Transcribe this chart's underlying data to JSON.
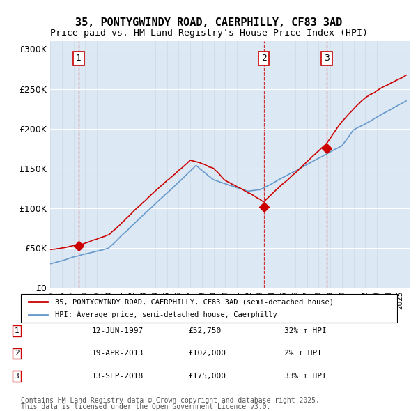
{
  "title1": "35, PONTYGWINDY ROAD, CAERPHILLY, CF83 3AD",
  "title2": "Price paid vs. HM Land Registry's House Price Index (HPI)",
  "legend_label_red": "35, PONTYGWINDY ROAD, CAERPHILLY, CF83 3AD (semi-detached house)",
  "legend_label_blue": "HPI: Average price, semi-detached house, Caerphilly",
  "footer1": "Contains HM Land Registry data © Crown copyright and database right 2025.",
  "footer2": "This data is licensed under the Open Government Licence v3.0.",
  "transactions": [
    {
      "num": 1,
      "date": "12-JUN-1997",
      "price": 52750,
      "pct": "32%",
      "dir": "↑",
      "year": 1997.45
    },
    {
      "num": 2,
      "date": "19-APR-2013",
      "price": 102000,
      "pct": "2%",
      "dir": "↑",
      "year": 2013.3
    },
    {
      "num": 3,
      "date": "13-SEP-2018",
      "price": 175000,
      "pct": "33%",
      "dir": "↑",
      "year": 2018.7
    }
  ],
  "background_color": "#dce9f5",
  "plot_bg_color": "#dce9f5",
  "red_color": "#cc0000",
  "blue_color": "#6699cc",
  "ylim": [
    0,
    310000
  ],
  "xlim_start": 1995.0,
  "xlim_end": 2025.8
}
